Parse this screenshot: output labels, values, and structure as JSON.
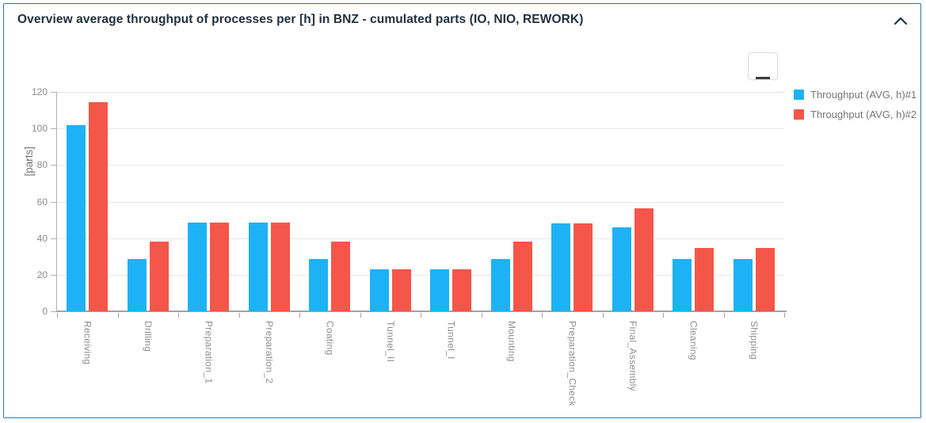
{
  "panel": {
    "title": "Overview average throughput of processes per [h] in BNZ - cumulated parts (IO, NIO, REWORK)",
    "collapse_icon": "chevron-up",
    "menu_icon": "hamburger"
  },
  "chart_data": {
    "type": "bar",
    "title": "",
    "xlabel": "",
    "ylabel": "[parts]",
    "ylim": [
      0,
      120
    ],
    "yticks": [
      0,
      20,
      40,
      60,
      80,
      100,
      120
    ],
    "grid": true,
    "legend_position": "right",
    "categories": [
      "Receiving",
      "Drilling",
      "Preparation_1",
      "Preparation_2",
      "Coating",
      "Tunnel_II",
      "Tunnel_I",
      "Mounting",
      "Preparation_Check",
      "Final_Assembly",
      "Cleaning",
      "Shipping"
    ],
    "series": [
      {
        "name": "Throughput (AVG, h)#1",
        "color": "#1db2f5",
        "values": [
          102,
          28.5,
          48.5,
          48.5,
          28.5,
          23,
          23,
          28.5,
          48,
          46,
          28.5,
          28.5
        ]
      },
      {
        "name": "Throughput (AVG, h)#2",
        "color": "#f5564a",
        "values": [
          114.5,
          38,
          48.5,
          48.5,
          38,
          23,
          23,
          38,
          48,
          56.5,
          34.5,
          34.5
        ]
      }
    ]
  },
  "colors": {
    "card_border": "#2e75b6",
    "title_text": "#21303f",
    "axis_label": "#8c8c8c",
    "legend_text": "#767676",
    "gridline": "#e8e8e8",
    "axis_line": "#a3a3a3",
    "series1": "#1db2f5",
    "series2": "#f5564a"
  }
}
